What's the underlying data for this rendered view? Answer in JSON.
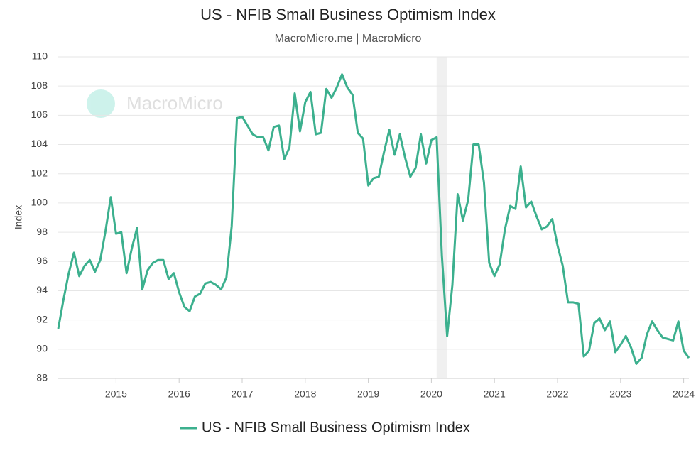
{
  "chart_data": {
    "type": "line",
    "title": "US - NFIB Small Business Optimism Index",
    "subtitle": "MacroMicro.me | MacroMicro",
    "watermark": "MacroMicro",
    "y_label": "Index",
    "ylim": [
      88,
      110
    ],
    "yticks": [
      88,
      90,
      92,
      94,
      96,
      98,
      100,
      102,
      104,
      106,
      108,
      110
    ],
    "xlim": [
      "2014-02",
      "2024-02"
    ],
    "xticks": [
      2015,
      2016,
      2017,
      2018,
      2019,
      2020,
      2021,
      2022,
      2023,
      2024
    ],
    "grid": true,
    "legend": "bottom",
    "shaded_periods": [
      {
        "start": "2020-02",
        "end": "2020-04",
        "color": "#f0f0f0"
      }
    ],
    "x": [
      "2014-02",
      "2014-03",
      "2014-04",
      "2014-05",
      "2014-06",
      "2014-07",
      "2014-08",
      "2014-09",
      "2014-10",
      "2014-11",
      "2014-12",
      "2015-01",
      "2015-02",
      "2015-03",
      "2015-04",
      "2015-05",
      "2015-06",
      "2015-07",
      "2015-08",
      "2015-09",
      "2015-10",
      "2015-11",
      "2015-12",
      "2016-01",
      "2016-02",
      "2016-03",
      "2016-04",
      "2016-05",
      "2016-06",
      "2016-07",
      "2016-08",
      "2016-09",
      "2016-10",
      "2016-11",
      "2016-12",
      "2017-01",
      "2017-02",
      "2017-03",
      "2017-04",
      "2017-05",
      "2017-06",
      "2017-07",
      "2017-08",
      "2017-09",
      "2017-10",
      "2017-11",
      "2017-12",
      "2018-01",
      "2018-02",
      "2018-03",
      "2018-04",
      "2018-05",
      "2018-06",
      "2018-07",
      "2018-08",
      "2018-09",
      "2018-10",
      "2018-11",
      "2018-12",
      "2019-01",
      "2019-02",
      "2019-03",
      "2019-04",
      "2019-05",
      "2019-06",
      "2019-07",
      "2019-08",
      "2019-09",
      "2019-10",
      "2019-11",
      "2019-12",
      "2020-01",
      "2020-02",
      "2020-03",
      "2020-04",
      "2020-05",
      "2020-06",
      "2020-07",
      "2020-08",
      "2020-09",
      "2020-10",
      "2020-11",
      "2020-12",
      "2021-01",
      "2021-02",
      "2021-03",
      "2021-04",
      "2021-05",
      "2021-06",
      "2021-07",
      "2021-08",
      "2021-09",
      "2021-10",
      "2021-11",
      "2021-12",
      "2022-01",
      "2022-02",
      "2022-03",
      "2022-04",
      "2022-05",
      "2022-06",
      "2022-07",
      "2022-08",
      "2022-09",
      "2022-10",
      "2022-11",
      "2022-12",
      "2023-01",
      "2023-02",
      "2023-03",
      "2023-04",
      "2023-05",
      "2023-06",
      "2023-07",
      "2023-08",
      "2023-09",
      "2023-10",
      "2023-11",
      "2023-12",
      "2024-01",
      "2024-02"
    ],
    "series": [
      {
        "name": "US - NFIB Small Business Optimism Index",
        "color": "#3cb08e",
        "values": [
          91.4,
          93.4,
          95.2,
          96.6,
          95.0,
          95.7,
          96.1,
          95.3,
          96.1,
          98.1,
          100.4,
          97.9,
          98.0,
          95.2,
          96.9,
          98.3,
          94.1,
          95.4,
          95.9,
          96.1,
          96.1,
          94.8,
          95.2,
          93.9,
          92.9,
          92.6,
          93.6,
          93.8,
          94.5,
          94.6,
          94.4,
          94.1,
          94.9,
          98.4,
          105.8,
          105.9,
          105.3,
          104.7,
          104.5,
          104.5,
          103.6,
          105.2,
          105.3,
          103.0,
          103.8,
          107.5,
          104.9,
          106.9,
          107.6,
          104.7,
          104.8,
          107.8,
          107.2,
          107.9,
          108.8,
          107.9,
          107.4,
          104.8,
          104.4,
          101.2,
          101.7,
          101.8,
          103.5,
          105.0,
          103.3,
          104.7,
          103.1,
          101.8,
          102.4,
          104.7,
          102.7,
          104.3,
          104.5,
          96.4,
          90.9,
          94.4,
          100.6,
          98.8,
          100.2,
          104.0,
          104.0,
          101.4,
          95.9,
          95.0,
          95.8,
          98.2,
          99.8,
          99.6,
          102.5,
          99.7,
          100.1,
          99.1,
          98.2,
          98.4,
          98.9,
          97.1,
          95.7,
          93.2,
          93.2,
          93.1,
          89.5,
          89.9,
          91.8,
          92.1,
          91.3,
          91.9,
          89.8,
          90.3,
          90.9,
          90.1,
          89.0,
          89.4,
          91.0,
          91.9,
          91.3,
          90.8,
          90.7,
          90.6,
          91.9,
          89.9,
          89.4
        ]
      }
    ]
  }
}
